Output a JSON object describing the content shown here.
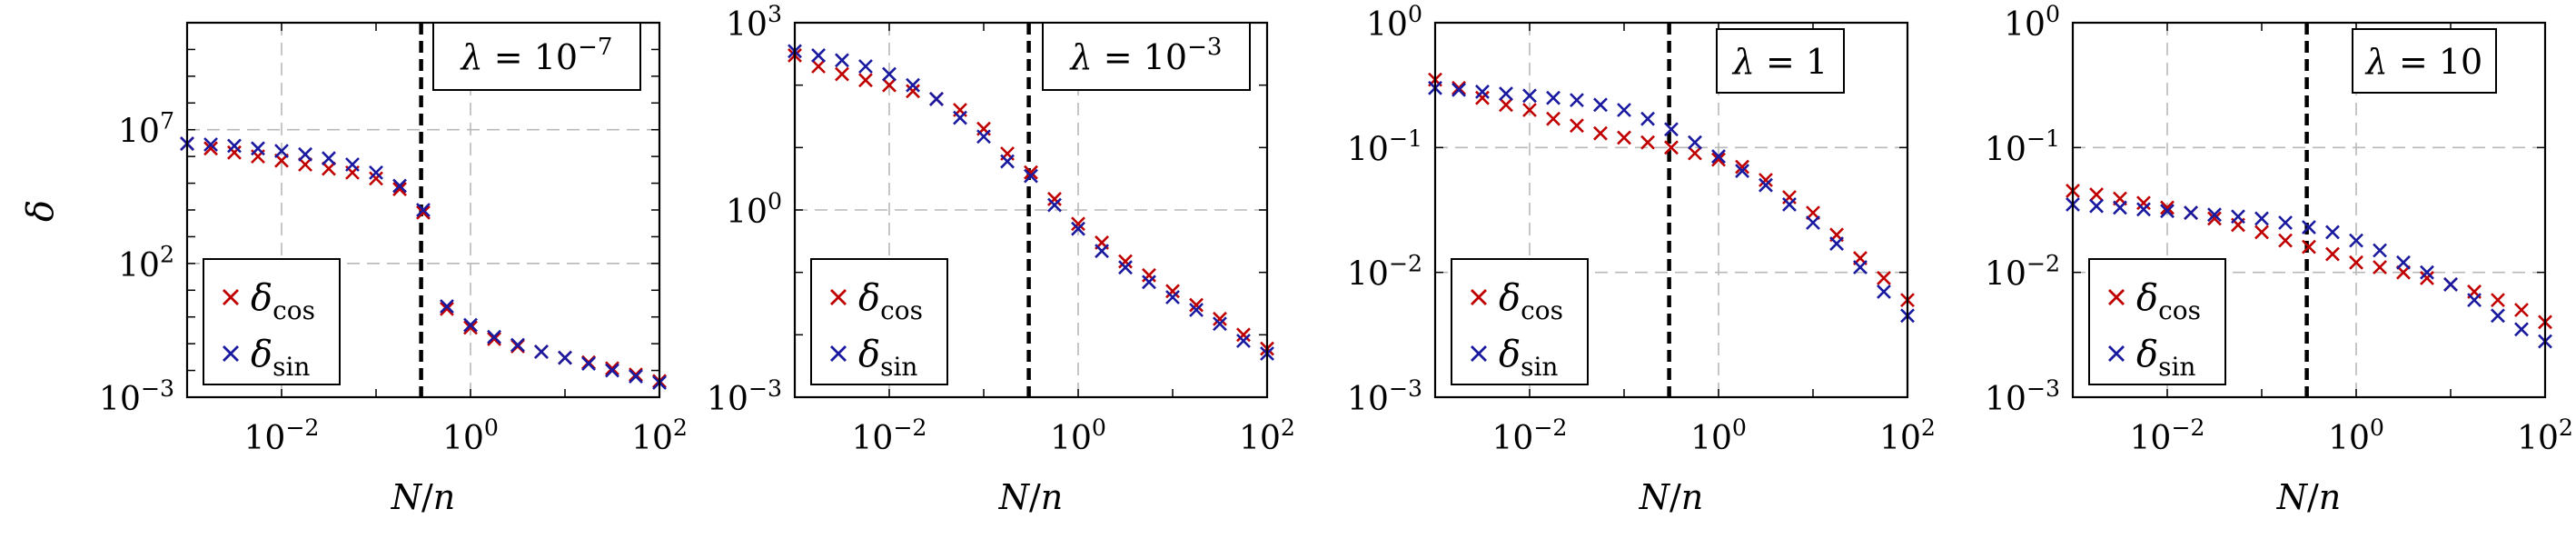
{
  "y_axis_label": "δ",
  "x_axis_label": "N/n",
  "colors": {
    "cos": "#c00000",
    "sin": "#1a1aa0",
    "grid": "#b8b8b8",
    "threshold": "#000000"
  },
  "chart_data": [
    {
      "type": "scatter",
      "title": "λ = 10^-7",
      "annotation_text": "λ = 10",
      "annotation_exp": "−7",
      "xscale": "log",
      "yscale": "log",
      "xlim": [
        0.001,
        100
      ],
      "ylim": [
        0.001,
        100000000000
      ],
      "x_ticks": [
        {
          "base": "10",
          "exp": "−2",
          "value": 0.01
        },
        {
          "base": "10",
          "exp": "0",
          "value": 1
        },
        {
          "base": "10",
          "exp": "2",
          "value": 100
        }
      ],
      "y_ticks": [
        {
          "base": "10",
          "exp": "−3",
          "value": 0.001
        },
        {
          "base": "10",
          "exp": "2",
          "value": 100
        },
        {
          "base": "10",
          "exp": "7",
          "value": 10000000
        }
      ],
      "grid": true,
      "threshold_x": 0.3,
      "legend_position": "bottom-left",
      "series": [
        {
          "name": "cos",
          "x": [
            0.001,
            0.00178,
            0.00316,
            0.00562,
            0.01,
            0.0178,
            0.0316,
            0.0562,
            0.1,
            0.178,
            0.316,
            0.562,
            1,
            1.78,
            3.16,
            5.62,
            10,
            17.8,
            31.6,
            56.2,
            100
          ],
          "y": [
            3000000,
            2000000,
            1400000,
            1000000,
            700000,
            500000,
            350000,
            250000,
            150000,
            60000,
            8000,
            2,
            0.4,
            0.15,
            0.08,
            0.05,
            0.03,
            0.02,
            0.012,
            0.007,
            0.004
          ]
        },
        {
          "name": "sin",
          "x": [
            0.001,
            0.00178,
            0.00316,
            0.00562,
            0.01,
            0.0178,
            0.0316,
            0.0562,
            0.1,
            0.178,
            0.316,
            0.562,
            1,
            1.78,
            3.16,
            5.62,
            10,
            17.8,
            31.6,
            56.2,
            100
          ],
          "y": [
            3000000,
            2800000,
            2500000,
            2000000,
            1600000,
            1200000,
            850000,
            500000,
            250000,
            80000,
            10000,
            2.5,
            0.5,
            0.18,
            0.09,
            0.05,
            0.03,
            0.018,
            0.01,
            0.006,
            0.0035
          ]
        }
      ],
      "legend": [
        {
          "series": "cos",
          "symbol": "δ",
          "sub": "cos"
        },
        {
          "series": "sin",
          "symbol": "δ",
          "sub": "sin"
        }
      ]
    },
    {
      "type": "scatter",
      "title": "λ = 10^-3",
      "annotation_text": "λ = 10",
      "annotation_exp": "−3",
      "xscale": "log",
      "yscale": "log",
      "xlim": [
        0.001,
        100
      ],
      "ylim": [
        0.001,
        1000
      ],
      "x_ticks": [
        {
          "base": "10",
          "exp": "−2",
          "value": 0.01
        },
        {
          "base": "10",
          "exp": "0",
          "value": 1
        },
        {
          "base": "10",
          "exp": "2",
          "value": 100
        }
      ],
      "y_ticks": [
        {
          "base": "10",
          "exp": "−3",
          "value": 0.001
        },
        {
          "base": "10",
          "exp": "0",
          "value": 1
        },
        {
          "base": "10",
          "exp": "3",
          "value": 1000
        }
      ],
      "grid": true,
      "threshold_x": 0.3,
      "legend_position": "bottom-left",
      "series": [
        {
          "name": "cos",
          "x": [
            0.001,
            0.00178,
            0.00316,
            0.00562,
            0.01,
            0.0178,
            0.0316,
            0.0562,
            0.1,
            0.178,
            0.316,
            0.562,
            1,
            1.78,
            3.16,
            5.62,
            10,
            17.8,
            31.6,
            56.2,
            100
          ],
          "y": [
            300,
            200,
            150,
            120,
            100,
            80,
            60,
            40,
            20,
            8,
            4,
            1.5,
            0.6,
            0.3,
            0.15,
            0.09,
            0.05,
            0.03,
            0.018,
            0.01,
            0.006
          ]
        },
        {
          "name": "sin",
          "x": [
            0.001,
            0.00178,
            0.00316,
            0.00562,
            0.01,
            0.0178,
            0.0316,
            0.0562,
            0.1,
            0.178,
            0.316,
            0.562,
            1,
            1.78,
            3.16,
            5.62,
            10,
            17.8,
            31.6,
            56.2,
            100
          ],
          "y": [
            350,
            300,
            250,
            200,
            150,
            100,
            60,
            30,
            15,
            6,
            3.5,
            1.2,
            0.5,
            0.22,
            0.12,
            0.07,
            0.04,
            0.025,
            0.015,
            0.008,
            0.005
          ]
        }
      ],
      "legend": [
        {
          "series": "cos",
          "symbol": "δ",
          "sub": "cos"
        },
        {
          "series": "sin",
          "symbol": "δ",
          "sub": "sin"
        }
      ]
    },
    {
      "type": "scatter",
      "title": "λ = 1",
      "annotation_text": "λ = 1",
      "annotation_exp": "",
      "xscale": "log",
      "yscale": "log",
      "xlim": [
        0.001,
        100
      ],
      "ylim": [
        0.001,
        1
      ],
      "x_ticks": [
        {
          "base": "10",
          "exp": "−2",
          "value": 0.01
        },
        {
          "base": "10",
          "exp": "0",
          "value": 1
        },
        {
          "base": "10",
          "exp": "2",
          "value": 100
        }
      ],
      "y_ticks": [
        {
          "base": "10",
          "exp": "−3",
          "value": 0.001
        },
        {
          "base": "10",
          "exp": "−2",
          "value": 0.01
        },
        {
          "base": "10",
          "exp": "−1",
          "value": 0.1
        },
        {
          "base": "10",
          "exp": "0",
          "value": 1
        }
      ],
      "grid": true,
      "threshold_x": 0.3,
      "legend_position": "bottom-left",
      "series": [
        {
          "name": "cos",
          "x": [
            0.001,
            0.00178,
            0.00316,
            0.00562,
            0.01,
            0.0178,
            0.0316,
            0.0562,
            0.1,
            0.178,
            0.316,
            0.562,
            1,
            1.78,
            3.16,
            5.62,
            10,
            17.8,
            31.6,
            56.2,
            100
          ],
          "y": [
            0.35,
            0.3,
            0.25,
            0.22,
            0.2,
            0.17,
            0.15,
            0.13,
            0.12,
            0.11,
            0.1,
            0.09,
            0.08,
            0.07,
            0.055,
            0.04,
            0.03,
            0.02,
            0.013,
            0.009,
            0.006
          ]
        },
        {
          "name": "sin",
          "x": [
            0.001,
            0.00178,
            0.00316,
            0.00562,
            0.01,
            0.0178,
            0.0316,
            0.0562,
            0.1,
            0.178,
            0.316,
            0.562,
            1,
            1.78,
            3.16,
            5.62,
            10,
            17.8,
            31.6,
            56.2,
            100
          ],
          "y": [
            0.3,
            0.29,
            0.28,
            0.27,
            0.26,
            0.25,
            0.24,
            0.22,
            0.2,
            0.17,
            0.14,
            0.11,
            0.085,
            0.065,
            0.05,
            0.035,
            0.025,
            0.017,
            0.011,
            0.007,
            0.0045
          ]
        }
      ],
      "legend": [
        {
          "series": "cos",
          "symbol": "δ",
          "sub": "cos"
        },
        {
          "series": "sin",
          "symbol": "δ",
          "sub": "sin"
        }
      ]
    },
    {
      "type": "scatter",
      "title": "λ = 10",
      "annotation_text": "λ = 10",
      "annotation_exp": "",
      "xscale": "log",
      "yscale": "log",
      "xlim": [
        0.001,
        100
      ],
      "ylim": [
        0.001,
        1
      ],
      "x_ticks": [
        {
          "base": "10",
          "exp": "−2",
          "value": 0.01
        },
        {
          "base": "10",
          "exp": "0",
          "value": 1
        },
        {
          "base": "10",
          "exp": "2",
          "value": 100
        }
      ],
      "y_ticks": [
        {
          "base": "10",
          "exp": "−3",
          "value": 0.001
        },
        {
          "base": "10",
          "exp": "−2",
          "value": 0.01
        },
        {
          "base": "10",
          "exp": "−1",
          "value": 0.1
        },
        {
          "base": "10",
          "exp": "0",
          "value": 1
        }
      ],
      "grid": true,
      "threshold_x": 0.3,
      "legend_position": "bottom-left",
      "series": [
        {
          "name": "cos",
          "x": [
            0.001,
            0.00178,
            0.00316,
            0.00562,
            0.01,
            0.0178,
            0.0316,
            0.0562,
            0.1,
            0.178,
            0.316,
            0.562,
            1,
            1.78,
            3.16,
            5.62,
            10,
            17.8,
            31.6,
            56.2,
            100
          ],
          "y": [
            0.045,
            0.042,
            0.039,
            0.036,
            0.033,
            0.03,
            0.027,
            0.024,
            0.021,
            0.018,
            0.016,
            0.014,
            0.012,
            0.011,
            0.01,
            0.009,
            0.008,
            0.007,
            0.006,
            0.005,
            0.004
          ]
        },
        {
          "name": "sin",
          "x": [
            0.001,
            0.00178,
            0.00316,
            0.00562,
            0.01,
            0.0178,
            0.0316,
            0.0562,
            0.1,
            0.178,
            0.316,
            0.562,
            1,
            1.78,
            3.16,
            5.62,
            10,
            17.8,
            31.6,
            56.2,
            100
          ],
          "y": [
            0.035,
            0.034,
            0.033,
            0.032,
            0.031,
            0.03,
            0.029,
            0.028,
            0.027,
            0.025,
            0.023,
            0.021,
            0.018,
            0.015,
            0.012,
            0.01,
            0.008,
            0.006,
            0.0045,
            0.0035,
            0.0028
          ]
        }
      ],
      "legend": [
        {
          "series": "cos",
          "symbol": "δ",
          "sub": "cos"
        },
        {
          "series": "sin",
          "symbol": "δ",
          "sub": "sin"
        }
      ]
    }
  ]
}
